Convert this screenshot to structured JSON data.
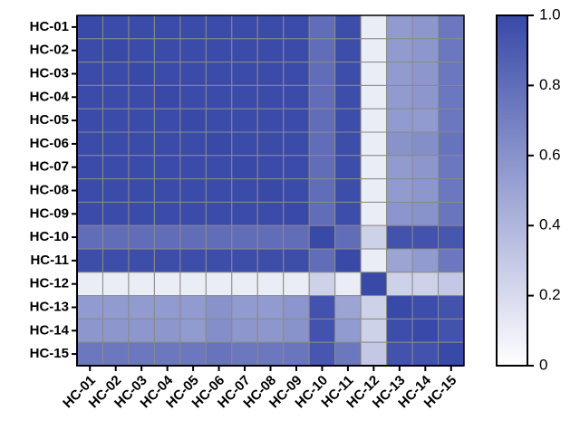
{
  "chart_data": {
    "type": "heatmap",
    "xcategories": [
      "HC-01",
      "HC-02",
      "HC-03",
      "HC-04",
      "HC-05",
      "HC-06",
      "HC-07",
      "HC-08",
      "HC-09",
      "HC-10",
      "HC-11",
      "HC-12",
      "HC-13",
      "HC-14",
      "HC-15"
    ],
    "ycategories": [
      "HC-01",
      "HC-02",
      "HC-03",
      "HC-04",
      "HC-05",
      "HC-06",
      "HC-07",
      "HC-08",
      "HC-09",
      "HC-10",
      "HC-11",
      "HC-12",
      "HC-13",
      "HC-14",
      "HC-15"
    ],
    "values": [
      [
        1,
        0.99,
        0.99,
        0.99,
        0.99,
        0.99,
        0.99,
        0.99,
        0.99,
        0.8,
        0.98,
        0.1,
        0.55,
        0.57,
        0.75
      ],
      [
        0.99,
        1,
        0.99,
        0.99,
        0.99,
        0.99,
        0.99,
        0.99,
        0.99,
        0.8,
        0.98,
        0.1,
        0.55,
        0.57,
        0.75
      ],
      [
        0.99,
        0.99,
        1,
        0.99,
        0.99,
        0.99,
        0.99,
        0.99,
        0.99,
        0.8,
        0.98,
        0.1,
        0.55,
        0.57,
        0.75
      ],
      [
        0.99,
        0.99,
        0.99,
        1,
        0.99,
        0.99,
        0.99,
        0.99,
        0.99,
        0.8,
        0.98,
        0.1,
        0.55,
        0.57,
        0.75
      ],
      [
        0.99,
        0.99,
        0.99,
        0.99,
        1,
        0.99,
        0.99,
        0.99,
        0.99,
        0.8,
        0.98,
        0.1,
        0.55,
        0.55,
        0.75
      ],
      [
        0.99,
        0.99,
        0.99,
        0.99,
        0.99,
        1,
        0.99,
        0.99,
        0.99,
        0.8,
        0.98,
        0.1,
        0.6,
        0.62,
        0.77
      ],
      [
        0.99,
        0.99,
        0.99,
        0.99,
        0.99,
        0.99,
        1,
        0.99,
        0.99,
        0.8,
        0.98,
        0.1,
        0.55,
        0.57,
        0.75
      ],
      [
        0.99,
        0.99,
        0.99,
        0.99,
        0.99,
        0.99,
        0.99,
        1,
        0.99,
        0.8,
        0.98,
        0.1,
        0.55,
        0.57,
        0.75
      ],
      [
        0.99,
        0.99,
        0.99,
        0.99,
        0.99,
        0.99,
        0.99,
        0.99,
        1,
        0.8,
        0.98,
        0.1,
        0.58,
        0.6,
        0.76
      ],
      [
        0.8,
        0.8,
        0.8,
        0.8,
        0.8,
        0.8,
        0.8,
        0.8,
        0.8,
        1,
        0.8,
        0.25,
        0.95,
        0.95,
        0.93
      ],
      [
        0.98,
        0.98,
        0.98,
        0.98,
        0.98,
        0.98,
        0.98,
        0.98,
        0.98,
        0.8,
        1,
        0.1,
        0.5,
        0.55,
        0.75
      ],
      [
        0.1,
        0.1,
        0.1,
        0.1,
        0.1,
        0.1,
        0.1,
        0.1,
        0.1,
        0.25,
        0.1,
        1,
        0.25,
        0.25,
        0.3
      ],
      [
        0.55,
        0.55,
        0.55,
        0.55,
        0.55,
        0.6,
        0.55,
        0.55,
        0.58,
        0.95,
        0.5,
        0.25,
        1,
        0.98,
        0.95
      ],
      [
        0.57,
        0.57,
        0.57,
        0.57,
        0.55,
        0.62,
        0.57,
        0.57,
        0.6,
        0.95,
        0.55,
        0.25,
        0.98,
        1,
        0.95
      ],
      [
        0.75,
        0.75,
        0.75,
        0.75,
        0.75,
        0.77,
        0.75,
        0.75,
        0.76,
        0.93,
        0.75,
        0.3,
        0.95,
        0.95,
        1
      ]
    ],
    "colors": [
      "#ffffff",
      "#3949a8"
    ],
    "colorbar_lim": [
      0,
      1
    ],
    "colorbar_ticks": [
      0,
      0.2,
      0.4,
      0.6,
      0.8,
      {
        "value": 1,
        "label": "1.0"
      }
    ]
  }
}
